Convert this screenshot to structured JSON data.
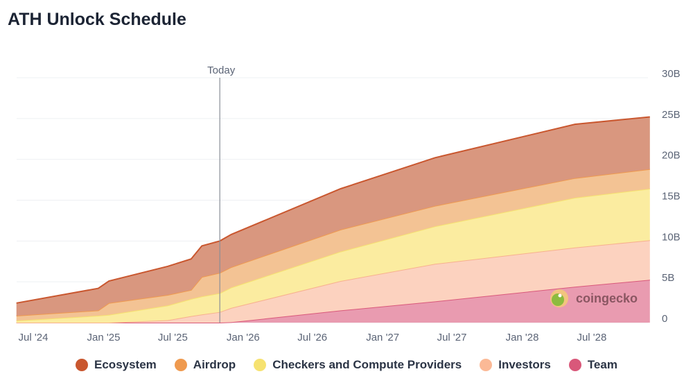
{
  "title": "ATH Unlock Schedule",
  "watermark": "coingecko",
  "chart_data": {
    "type": "area",
    "stacked": true,
    "title": "ATH Unlock Schedule",
    "xlabel": "",
    "ylabel": "",
    "ylim": [
      0,
      30
    ],
    "y_unit": "B",
    "yticks": [
      "0",
      "5B",
      "10B",
      "15B",
      "20B",
      "25B",
      "30B"
    ],
    "ytick_values": [
      0,
      5,
      10,
      15,
      20,
      25,
      30
    ],
    "xticks": [
      "Jul '24",
      "Jan '25",
      "Jul '25",
      "Jan '26",
      "Jul '26",
      "Jan '27",
      "Jul '27",
      "Jan '28",
      "Jul '28"
    ],
    "xtick_dates": [
      "2024-07-01",
      "2025-01-01",
      "2025-07-01",
      "2026-01-01",
      "2026-07-01",
      "2027-01-01",
      "2027-07-01",
      "2028-01-01",
      "2028-07-01"
    ],
    "today_label": "Today",
    "today_date": "2025-11-01",
    "grid": true,
    "legend_position": "bottom",
    "x": [
      "2024-05-18",
      "2024-12-18",
      "2025-01-15",
      "2025-06-18",
      "2025-08-18",
      "2025-09-15",
      "2025-11-01",
      "2025-12-01",
      "2026-09-13",
      "2027-05-18",
      "2028-05-18",
      "2028-11-30"
    ],
    "series": [
      {
        "name": "Team",
        "color": "#d9587a",
        "fill": "#e99bb0",
        "values": [
          0,
          0,
          0,
          0,
          0,
          0,
          0,
          0.05,
          1.5,
          2.6,
          4.4,
          5.25
        ]
      },
      {
        "name": "Investors",
        "color": "#f7b08e",
        "fill": "#fcd2bf",
        "values": [
          0,
          0,
          0,
          0.3,
          0.8,
          1.0,
          1.3,
          1.75,
          3.6,
          4.6,
          4.8,
          4.85
        ]
      },
      {
        "name": "Checkers and Compute Providers",
        "color": "#f6e270",
        "fill": "#fbeca0",
        "values": [
          0.25,
          0.85,
          0.95,
          1.8,
          2.1,
          2.2,
          2.3,
          2.5,
          3.6,
          4.6,
          6.1,
          6.3
        ]
      },
      {
        "name": "Airdrop",
        "color": "#ef9a4f",
        "fill": "#f3c394",
        "values": [
          0.6,
          0.65,
          1.45,
          1.3,
          1.1,
          2.4,
          2.5,
          2.5,
          2.7,
          2.5,
          2.4,
          2.4
        ]
      },
      {
        "name": "Ecosystem",
        "color": "#c9572f",
        "fill": "#d9977f",
        "values": [
          1.55,
          2.7,
          2.7,
          3.5,
          3.8,
          3.8,
          3.9,
          4.0,
          5.0,
          5.9,
          6.6,
          6.4
        ]
      }
    ],
    "legend": [
      "Ecosystem",
      "Airdrop",
      "Checkers and Compute Providers",
      "Investors",
      "Team"
    ]
  }
}
